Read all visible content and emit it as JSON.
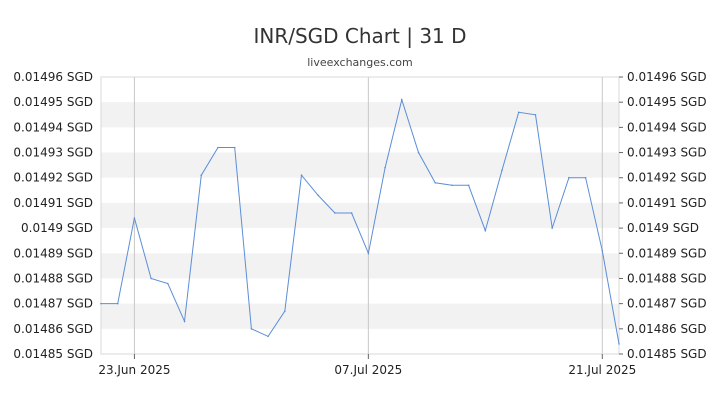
{
  "chart_data": {
    "type": "line",
    "title": "INR/SGD Chart | 31 D",
    "subtitle": "liveexchanges.com",
    "xlabel": "",
    "ylabel": "",
    "ylim": [
      0.01485,
      0.01496
    ],
    "y_ticks": [
      {
        "value": 0.01496,
        "label": "0.01496 SGD"
      },
      {
        "value": 0.01495,
        "label": "0.01495 SGD"
      },
      {
        "value": 0.01494,
        "label": "0.01494 SGD"
      },
      {
        "value": 0.01493,
        "label": "0.01493 SGD"
      },
      {
        "value": 0.01492,
        "label": "0.01492 SGD"
      },
      {
        "value": 0.01491,
        "label": "0.01491 SGD"
      },
      {
        "value": 0.0149,
        "label": "0.0149 SGD"
      },
      {
        "value": 0.01489,
        "label": "0.01489 SGD"
      },
      {
        "value": 0.01488,
        "label": "0.01488 SGD"
      },
      {
        "value": 0.01487,
        "label": "0.01487 SGD"
      },
      {
        "value": 0.01486,
        "label": "0.01486 SGD"
      },
      {
        "value": 0.01485,
        "label": "0.01485 SGD"
      }
    ],
    "x_ticks": [
      {
        "index": 2,
        "label": "23.Jun 2025"
      },
      {
        "index": 16,
        "label": "07.Jul 2025"
      },
      {
        "index": 30,
        "label": "21.Jul 2025"
      }
    ],
    "grid": "alternating horizontal bands with vertical lines at date ticks",
    "line_color": "#5b8ed8",
    "band_color": "#f2f2f2",
    "series": [
      {
        "values": [
          0.01487,
          0.01487,
          0.014904,
          0.01488,
          0.014878,
          0.014863,
          0.014921,
          0.014932,
          0.014932,
          0.01486,
          0.014857,
          0.014867,
          0.014921,
          0.014913,
          0.014906,
          0.014906,
          0.01489,
          0.014924,
          0.014951,
          0.01493,
          0.014918,
          0.014917,
          0.014917,
          0.014899,
          0.014923,
          0.014946,
          0.014945,
          0.0149,
          0.01492,
          0.01492,
          0.014891,
          0.014854
        ]
      }
    ]
  }
}
